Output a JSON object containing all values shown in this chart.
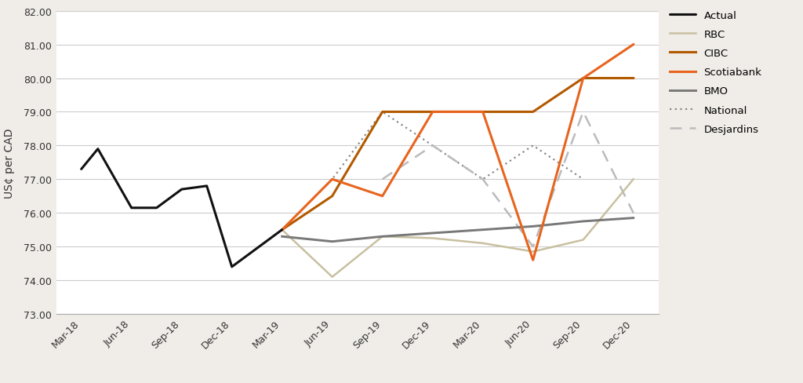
{
  "x_labels": [
    "Mar-18",
    "Jun-18",
    "Sep-18",
    "Dec-18",
    "Mar-19",
    "Jun-19",
    "Sep-19",
    "Dec-19",
    "Mar-20",
    "Jun-20",
    "Sep-20",
    "Dec-20"
  ],
  "actual_xi": [
    0,
    0.33,
    1.0,
    1.5,
    2.0,
    2.5,
    3.0,
    4.0
  ],
  "actual_yi": [
    77.3,
    77.9,
    76.15,
    76.15,
    76.7,
    76.8,
    74.4,
    75.5
  ],
  "rbc_xi": [
    4,
    5,
    6,
    7,
    8,
    9,
    10,
    11
  ],
  "rbc_yi": [
    75.5,
    74.1,
    75.3,
    75.25,
    75.1,
    74.85,
    75.2,
    77.0
  ],
  "cibc_xi": [
    4,
    5,
    6,
    7,
    8,
    9,
    10,
    11
  ],
  "cibc_yi": [
    75.5,
    76.5,
    79.0,
    79.0,
    79.0,
    79.0,
    80.0,
    80.0
  ],
  "scotiabank_xi": [
    4,
    5,
    6,
    7,
    8,
    9,
    10,
    11
  ],
  "scotiabank_yi": [
    75.5,
    77.0,
    76.5,
    79.0,
    79.0,
    74.6,
    80.0,
    81.0
  ],
  "bmo_xi": [
    4,
    5,
    6,
    7,
    8,
    9,
    10,
    11
  ],
  "bmo_yi": [
    75.3,
    75.15,
    75.3,
    75.4,
    75.5,
    75.6,
    75.75,
    75.85
  ],
  "national_xi": [
    4,
    5,
    6,
    7,
    8,
    9,
    10
  ],
  "national_yi": [
    75.5,
    77.0,
    79.0,
    78.0,
    77.0,
    78.0,
    77.0
  ],
  "desjardins_xi": [
    6,
    7,
    8,
    9,
    10,
    11
  ],
  "desjardins_yi": [
    77.0,
    78.0,
    77.0,
    75.0,
    79.0,
    76.0
  ],
  "ylim": [
    73.0,
    82.0
  ],
  "yticks": [
    73.0,
    74.0,
    75.0,
    76.0,
    77.0,
    78.0,
    79.0,
    80.0,
    81.0,
    82.0
  ],
  "ylabel": "US¢ per CAD",
  "colors": {
    "actual": "#111111",
    "rbc": "#c8c0a0",
    "cibc": "#b35a00",
    "scotiabank": "#e8641e",
    "bmo": "#787878",
    "national": "#888888",
    "desjardins": "#bbbbbb"
  },
  "background_color": "#f0ede8",
  "plot_bg": "#ffffff"
}
